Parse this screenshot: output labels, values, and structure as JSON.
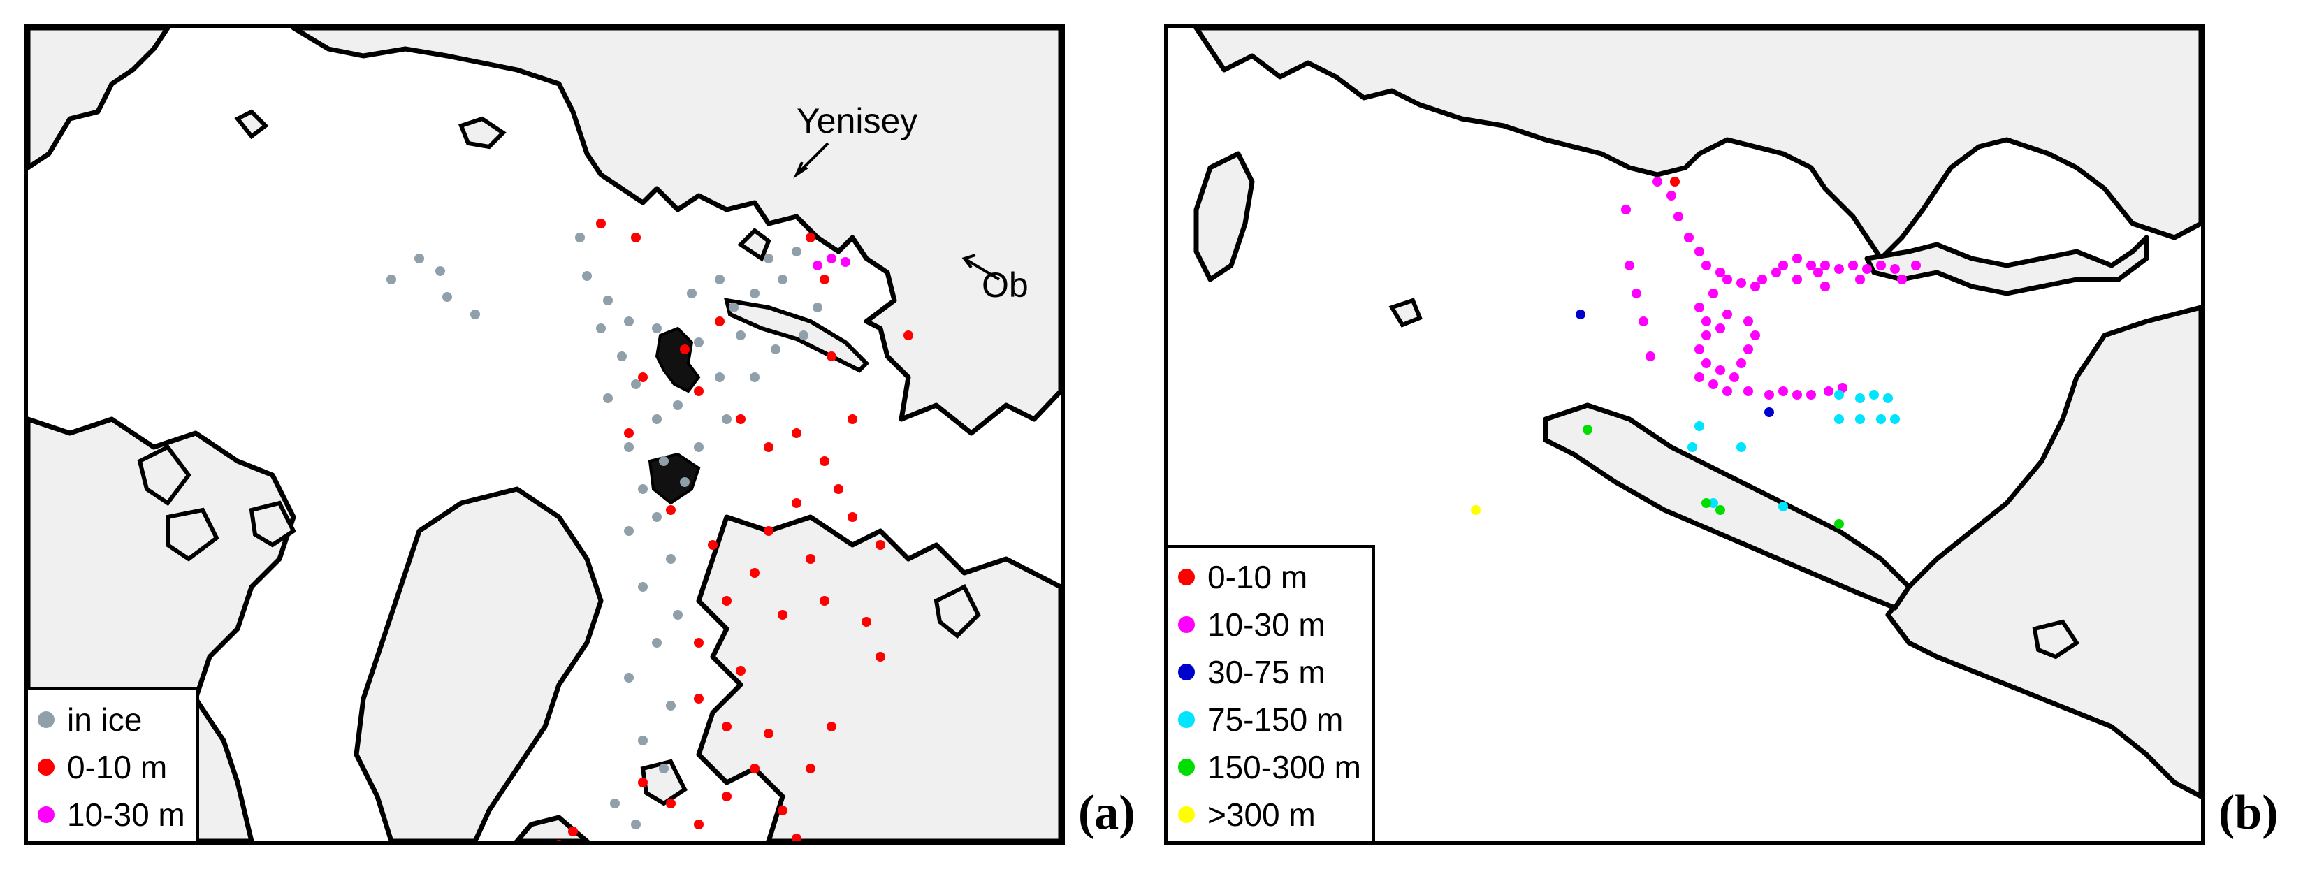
{
  "panel_a": {
    "label": "(a)",
    "annotations": {
      "yenisey": "Yenisey",
      "ob": "Ob"
    },
    "legend": [
      {
        "text": "in ice",
        "color": "#8fa0aa"
      },
      {
        "text": "0-10 m",
        "color": "#ff0000"
      },
      {
        "text": "10-30 m",
        "color": "#ff00ff"
      }
    ],
    "points": {
      "in_ice": [
        [
          560,
          330
        ],
        [
          590,
          348
        ],
        [
          520,
          360
        ],
        [
          640,
          410
        ],
        [
          600,
          385
        ],
        [
          790,
          300
        ],
        [
          800,
          355
        ],
        [
          830,
          390
        ],
        [
          820,
          430
        ],
        [
          860,
          420
        ],
        [
          850,
          470
        ],
        [
          900,
          430
        ],
        [
          870,
          510
        ],
        [
          830,
          530
        ],
        [
          900,
          560
        ],
        [
          860,
          600
        ],
        [
          910,
          620
        ],
        [
          880,
          660
        ],
        [
          940,
          650
        ],
        [
          900,
          700
        ],
        [
          860,
          720
        ],
        [
          920,
          760
        ],
        [
          880,
          800
        ],
        [
          930,
          840
        ],
        [
          900,
          880
        ],
        [
          860,
          930
        ],
        [
          920,
          970
        ],
        [
          880,
          1020
        ],
        [
          910,
          1060
        ],
        [
          840,
          1110
        ],
        [
          870,
          1140
        ],
        [
          950,
          380
        ],
        [
          990,
          360
        ],
        [
          1010,
          400
        ],
        [
          1040,
          380
        ],
        [
          1060,
          330
        ],
        [
          1080,
          360
        ],
        [
          1100,
          320
        ],
        [
          960,
          450
        ],
        [
          1020,
          440
        ],
        [
          1070,
          460
        ],
        [
          1110,
          440
        ],
        [
          1130,
          400
        ],
        [
          990,
          500
        ],
        [
          1040,
          500
        ],
        [
          1000,
          560
        ],
        [
          960,
          600
        ],
        [
          930,
          540
        ]
      ],
      "m0_10": [
        [
          820,
          280
        ],
        [
          870,
          300
        ],
        [
          960,
          520
        ],
        [
          1020,
          560
        ],
        [
          1060,
          600
        ],
        [
          1100,
          580
        ],
        [
          1140,
          620
        ],
        [
          1180,
          560
        ],
        [
          1160,
          660
        ],
        [
          1100,
          680
        ],
        [
          1060,
          720
        ],
        [
          1120,
          760
        ],
        [
          1180,
          700
        ],
        [
          1220,
          740
        ],
        [
          1040,
          780
        ],
        [
          1000,
          820
        ],
        [
          1080,
          840
        ],
        [
          1140,
          820
        ],
        [
          960,
          880
        ],
        [
          1020,
          920
        ],
        [
          960,
          960
        ],
        [
          1000,
          1000
        ],
        [
          1060,
          1010
        ],
        [
          1040,
          1060
        ],
        [
          920,
          1110
        ],
        [
          1000,
          1100
        ],
        [
          1080,
          1120
        ],
        [
          1100,
          1160
        ],
        [
          960,
          1140
        ],
        [
          880,
          1080
        ],
        [
          780,
          1150
        ],
        [
          760,
          1170
        ],
        [
          1120,
          1060
        ],
        [
          1150,
          1000
        ],
        [
          1220,
          900
        ],
        [
          1200,
          850
        ],
        [
          1260,
          440
        ],
        [
          1150,
          470
        ],
        [
          1120,
          300
        ],
        [
          990,
          420
        ],
        [
          940,
          460
        ],
        [
          880,
          500
        ],
        [
          860,
          580
        ],
        [
          920,
          690
        ],
        [
          980,
          740
        ],
        [
          1140,
          360
        ]
      ],
      "m10_30": [
        [
          1130,
          340
        ],
        [
          1150,
          330
        ],
        [
          1170,
          335
        ]
      ]
    }
  },
  "panel_b": {
    "label": "(b)",
    "legend": [
      {
        "text": "0-10 m",
        "color": "#ff0000"
      },
      {
        "text": "10-30 m",
        "color": "#ff00ff"
      },
      {
        "text": "30-75 m",
        "color": "#0000cc"
      },
      {
        "text": "75-150 m",
        "color": "#00e5ff"
      },
      {
        "text": "150-300 m",
        "color": "#00dd00"
      },
      {
        "text": ">300 m",
        "color": "#ffff00"
      }
    ],
    "points": {
      "m0_10": [
        [
          725,
          220
        ]
      ],
      "m10_30": [
        [
          655,
          260
        ],
        [
          700,
          220
        ],
        [
          720,
          240
        ],
        [
          730,
          270
        ],
        [
          745,
          300
        ],
        [
          760,
          320
        ],
        [
          770,
          340
        ],
        [
          790,
          350
        ],
        [
          800,
          360
        ],
        [
          820,
          365
        ],
        [
          840,
          370
        ],
        [
          850,
          360
        ],
        [
          870,
          350
        ],
        [
          880,
          340
        ],
        [
          900,
          330
        ],
        [
          920,
          340
        ],
        [
          930,
          350
        ],
        [
          940,
          340
        ],
        [
          960,
          345
        ],
        [
          980,
          340
        ],
        [
          1000,
          345
        ],
        [
          1020,
          340
        ],
        [
          1040,
          345
        ],
        [
          780,
          380
        ],
        [
          760,
          400
        ],
        [
          770,
          420
        ],
        [
          790,
          430
        ],
        [
          770,
          440
        ],
        [
          760,
          460
        ],
        [
          770,
          480
        ],
        [
          790,
          490
        ],
        [
          810,
          500
        ],
        [
          820,
          480
        ],
        [
          830,
          460
        ],
        [
          840,
          440
        ],
        [
          830,
          420
        ],
        [
          800,
          410
        ],
        [
          760,
          500
        ],
        [
          780,
          510
        ],
        [
          800,
          520
        ],
        [
          830,
          520
        ],
        [
          860,
          525
        ],
        [
          880,
          520
        ],
        [
          900,
          525
        ],
        [
          920,
          525
        ],
        [
          945,
          520
        ],
        [
          965,
          515
        ],
        [
          660,
          340
        ],
        [
          670,
          380
        ],
        [
          680,
          420
        ],
        [
          690,
          470
        ],
        [
          900,
          360
        ],
        [
          940,
          370
        ],
        [
          990,
          360
        ],
        [
          1050,
          360
        ],
        [
          1070,
          340
        ]
      ],
      "m30_75": [
        [
          590,
          410
        ],
        [
          860,
          550
        ]
      ],
      "m75_150": [
        [
          960,
          525
        ],
        [
          990,
          530
        ],
        [
          1010,
          525
        ],
        [
          1030,
          530
        ],
        [
          960,
          560
        ],
        [
          990,
          560
        ],
        [
          1020,
          560
        ],
        [
          1040,
          560
        ],
        [
          760,
          570
        ],
        [
          750,
          600
        ],
        [
          820,
          600
        ],
        [
          780,
          680
        ],
        [
          880,
          685
        ]
      ],
      "m150_300": [
        [
          600,
          575
        ],
        [
          770,
          680
        ],
        [
          790,
          690
        ],
        [
          960,
          710
        ]
      ],
      "m300_plus": [
        [
          440,
          690
        ]
      ]
    }
  }
}
